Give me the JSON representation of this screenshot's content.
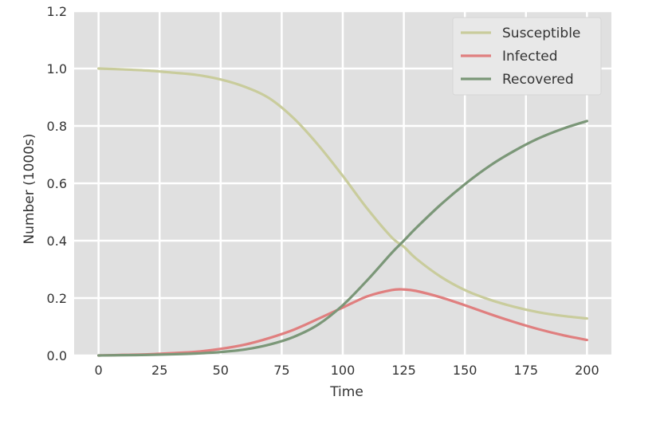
{
  "chart_data": {
    "type": "line",
    "title": "",
    "xlabel": "Time",
    "ylabel": "Number (1000s)",
    "xlim": [
      -10,
      210
    ],
    "ylim": [
      0,
      1.2
    ],
    "xticks": [
      "0",
      "25",
      "50",
      "75",
      "100",
      "125",
      "150",
      "175",
      "200"
    ],
    "yticks": [
      "0.0",
      "0.2",
      "0.4",
      "0.6",
      "0.8",
      "1.0",
      "1.2"
    ],
    "grid": true,
    "legend_position": "top-right",
    "background": "#e0e0e0",
    "x": [
      0,
      10,
      20,
      30,
      40,
      50,
      60,
      70,
      80,
      90,
      100,
      110,
      120,
      125,
      130,
      140,
      150,
      160,
      170,
      180,
      190,
      200
    ],
    "series": [
      {
        "name": "Susceptible",
        "color": "#c9cc9c",
        "values": [
          1.0,
          0.997,
          0.993,
          0.986,
          0.978,
          0.962,
          0.936,
          0.896,
          0.826,
          0.733,
          0.626,
          0.512,
          0.412,
          0.379,
          0.338,
          0.275,
          0.228,
          0.195,
          0.17,
          0.151,
          0.138,
          0.129
        ]
      },
      {
        "name": "Infected",
        "color": "#e07f7f",
        "values": [
          0.0,
          0.002,
          0.004,
          0.008,
          0.013,
          0.023,
          0.038,
          0.061,
          0.09,
          0.128,
          0.167,
          0.206,
          0.228,
          0.23,
          0.225,
          0.203,
          0.175,
          0.145,
          0.117,
          0.092,
          0.071,
          0.054
        ]
      },
      {
        "name": "Recovered",
        "color": "#7b9778",
        "values": [
          0.0,
          0.001,
          0.002,
          0.004,
          0.007,
          0.012,
          0.021,
          0.038,
          0.065,
          0.108,
          0.175,
          0.262,
          0.357,
          0.4,
          0.444,
          0.525,
          0.597,
          0.66,
          0.712,
          0.756,
          0.79,
          0.817
        ]
      }
    ]
  }
}
